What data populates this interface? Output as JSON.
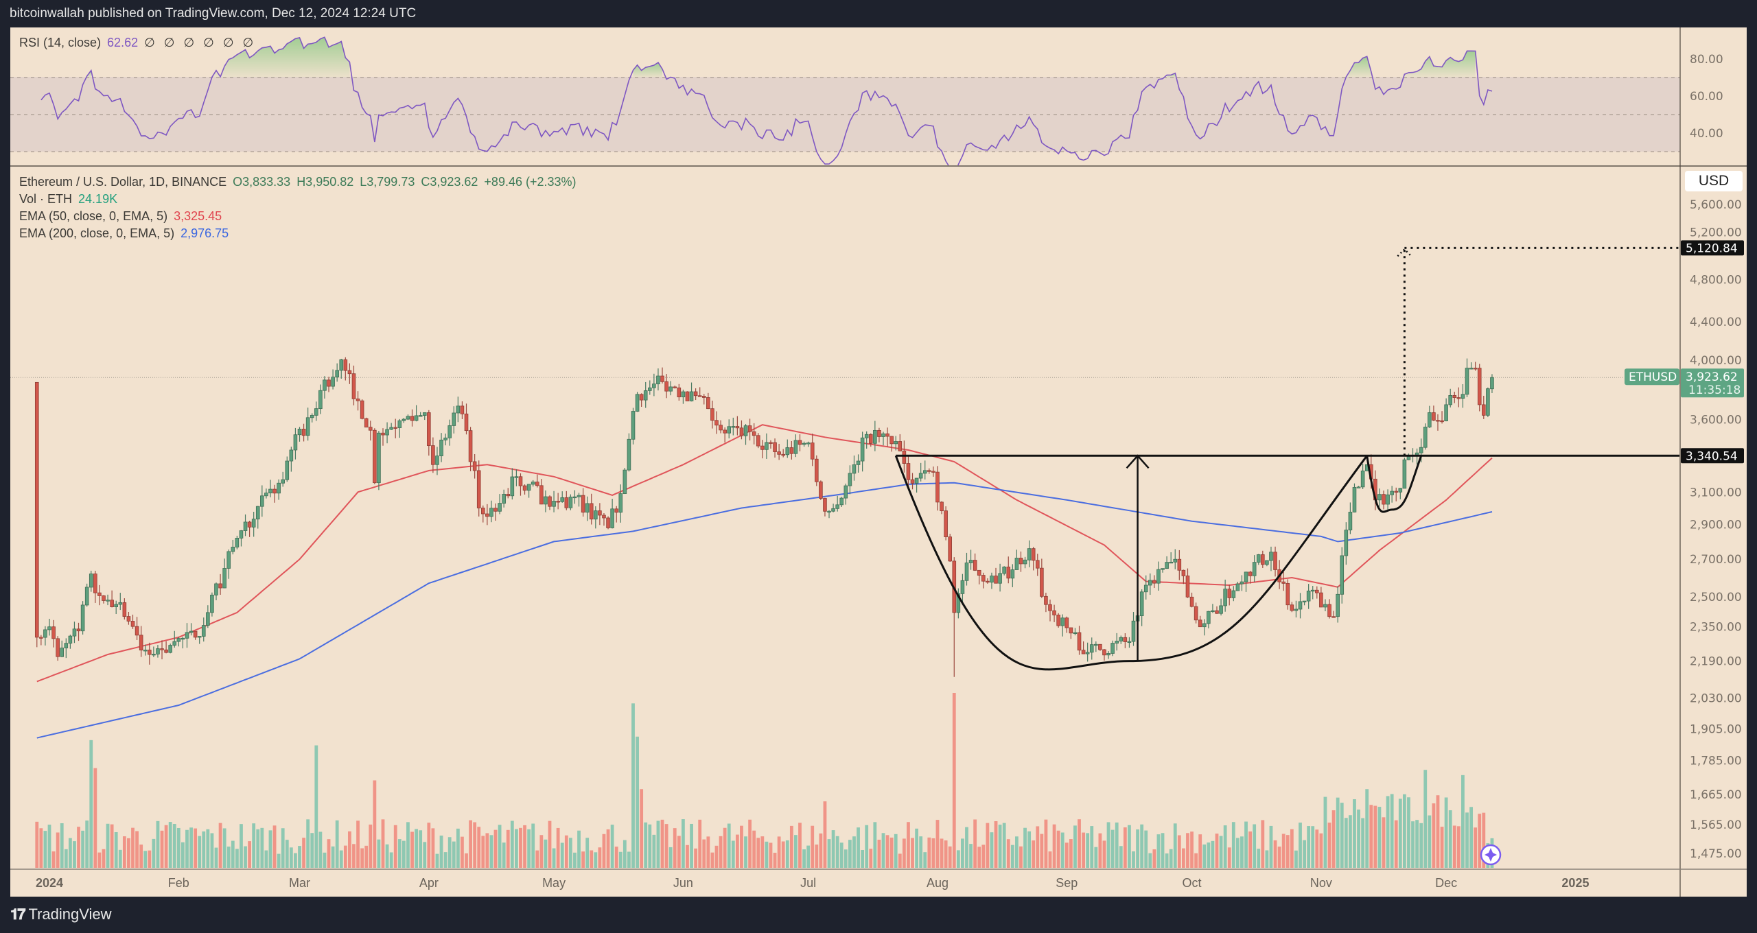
{
  "header": {
    "title": "bitcoinwallah published on TradingView.com, Dec 12, 2024 12:24 UTC"
  },
  "rsi_legend": {
    "label": "RSI (14, close)",
    "value": "62.62",
    "placeholders": "∅ ∅ ∅ ∅ ∅ ∅"
  },
  "legend": {
    "symbol": "Ethereum / U.S. Dollar, 1D, BINANCE",
    "open": "O3,833.33",
    "high": "H3,950.82",
    "low": "L3,799.73",
    "close": "C3,923.62",
    "change": "+89.46 (+2.33%)",
    "vol_label": "Vol · ETH",
    "vol_value": "24.19K",
    "ema50_label": "EMA (50, close, 0, EMA, 5)",
    "ema50_value": "3,325.45",
    "ema200_label": "EMA (200, close, 0, EMA, 5)",
    "ema200_value": "2,976.75"
  },
  "currency": "USD",
  "footer": {
    "brand": "TradingView",
    "logo_mark": "TV"
  },
  "colors": {
    "up": "#5e9f7d",
    "down": "#d2574b",
    "vol_up": "#8ec8b2",
    "vol_down": "#f09487",
    "ema50": "#e0555a",
    "ema200": "#4a6de0",
    "rsi": "#7e57c2",
    "background": "#f2e2cf"
  },
  "chart_data": [
    {
      "type": "line",
      "title": "RSI (14, close)",
      "yaxis": {
        "ticks": [
          "80.00",
          "60.00",
          "40.00"
        ],
        "tick_values": [
          80,
          60,
          40
        ],
        "bands": [
          70,
          50,
          30
        ]
      },
      "current": 62.62
    },
    {
      "type": "candlestick",
      "title": "Ethereum / U.S. Dollar, 1D, BINANCE",
      "yscale": "log",
      "ylim": [
        1430,
        5750
      ],
      "xaxis": {
        "ticks": [
          {
            "label": "2024",
            "date": "2024-01-01",
            "bold": true
          },
          {
            "label": "Feb",
            "date": "2024-02-01"
          },
          {
            "label": "Mar",
            "date": "2024-03-01"
          },
          {
            "label": "Apr",
            "date": "2024-04-01"
          },
          {
            "label": "May",
            "date": "2024-05-01"
          },
          {
            "label": "Jun",
            "date": "2024-06-01"
          },
          {
            "label": "Jul",
            "date": "2024-07-01"
          },
          {
            "label": "Aug",
            "date": "2024-08-01"
          },
          {
            "label": "Sep",
            "date": "2024-09-01"
          },
          {
            "label": "Oct",
            "date": "2024-10-01"
          },
          {
            "label": "Nov",
            "date": "2024-11-01"
          },
          {
            "label": "Dec",
            "date": "2024-12-01"
          },
          {
            "label": "2025",
            "date": "2025-01-01",
            "bold": true
          }
        ]
      },
      "yaxis": {
        "ticks": [
          {
            "label": "5,600.00",
            "value": 5600
          },
          {
            "label": "5,200.00",
            "value": 5200
          },
          {
            "label": "4,800.00",
            "value": 4800
          },
          {
            "label": "4,400.00",
            "value": 4400
          },
          {
            "label": "4,000.00",
            "value": 4000
          },
          {
            "label": "3,600.00",
            "value": 3600
          },
          {
            "label": "3,100.00",
            "value": 3100
          },
          {
            "label": "2,900.00",
            "value": 2900
          },
          {
            "label": "2,700.00",
            "value": 2700
          },
          {
            "label": "2,500.00",
            "value": 2500
          },
          {
            "label": "2,350.00",
            "value": 2350
          },
          {
            "label": "2,190.00",
            "value": 2190
          },
          {
            "label": "2,030.00",
            "value": 2030
          },
          {
            "label": "1,905.00",
            "value": 1905
          },
          {
            "label": "1,785.00",
            "value": 1785
          },
          {
            "label": "1,665.00",
            "value": 1665
          },
          {
            "label": "1,565.00",
            "value": 1565
          },
          {
            "label": "1,475.00",
            "value": 1475
          }
        ]
      },
      "close_keypoints": [
        [
          "2023-12-29",
          2300
        ],
        [
          "2024-01-01",
          2350
        ],
        [
          "2024-01-03",
          2210
        ],
        [
          "2024-01-08",
          2330
        ],
        [
          "2024-01-11",
          2620
        ],
        [
          "2024-01-12",
          2520
        ],
        [
          "2024-01-14",
          2480
        ],
        [
          "2024-01-18",
          2470
        ],
        [
          "2024-01-22",
          2310
        ],
        [
          "2024-01-23",
          2240
        ],
        [
          "2024-01-25",
          2220
        ],
        [
          "2024-01-31",
          2280
        ],
        [
          "2024-02-05",
          2300
        ],
        [
          "2024-02-08",
          2420
        ],
        [
          "2024-02-12",
          2650
        ],
        [
          "2024-02-15",
          2820
        ],
        [
          "2024-02-20",
          3010
        ],
        [
          "2024-02-26",
          3180
        ],
        [
          "2024-02-28",
          3380
        ],
        [
          "2024-03-04",
          3630
        ],
        [
          "2024-03-06",
          3820
        ],
        [
          "2024-03-11",
          4070
        ],
        [
          "2024-03-12",
          3980
        ],
        [
          "2024-03-15",
          3740
        ],
        [
          "2024-03-18",
          3520
        ],
        [
          "2024-03-19",
          3160
        ],
        [
          "2024-03-20",
          3500
        ],
        [
          "2024-03-25",
          3590
        ],
        [
          "2024-03-31",
          3650
        ],
        [
          "2024-04-02",
          3280
        ],
        [
          "2024-04-08",
          3700
        ],
        [
          "2024-04-12",
          3240
        ],
        [
          "2024-04-13",
          3000
        ],
        [
          "2024-04-17",
          2980
        ],
        [
          "2024-04-22",
          3200
        ],
        [
          "2024-04-25",
          3150
        ],
        [
          "2024-04-30",
          3010
        ],
        [
          "2024-05-06",
          3070
        ],
        [
          "2024-05-14",
          2880
        ],
        [
          "2024-05-17",
          3090
        ],
        [
          "2024-05-20",
          3660
        ],
        [
          "2024-05-21",
          3790
        ],
        [
          "2024-05-27",
          3890
        ],
        [
          "2024-06-01",
          3810
        ],
        [
          "2024-06-07",
          3680
        ],
        [
          "2024-06-11",
          3500
        ],
        [
          "2024-06-17",
          3510
        ],
        [
          "2024-06-24",
          3350
        ],
        [
          "2024-07-01",
          3430
        ],
        [
          "2024-07-04",
          3060
        ],
        [
          "2024-07-05",
          2980
        ],
        [
          "2024-07-08",
          3020
        ],
        [
          "2024-07-15",
          3490
        ],
        [
          "2024-07-22",
          3440
        ],
        [
          "2024-07-25",
          3180
        ],
        [
          "2024-07-31",
          3230
        ],
        [
          "2024-08-04",
          2690
        ],
        [
          "2024-08-05",
          2420
        ],
        [
          "2024-08-08",
          2680
        ],
        [
          "2024-08-15",
          2570
        ],
        [
          "2024-08-23",
          2760
        ],
        [
          "2024-08-27",
          2460
        ],
        [
          "2024-09-06",
          2230
        ],
        [
          "2024-09-16",
          2280
        ],
        [
          "2024-09-20",
          2560
        ],
        [
          "2024-09-27",
          2700
        ],
        [
          "2024-10-01",
          2450
        ],
        [
          "2024-10-03",
          2350
        ],
        [
          "2024-10-14",
          2630
        ],
        [
          "2024-10-20",
          2740
        ],
        [
          "2024-10-25",
          2430
        ],
        [
          "2024-10-31",
          2520
        ],
        [
          "2024-11-04",
          2400
        ],
        [
          "2024-11-06",
          2720
        ],
        [
          "2024-11-09",
          3130
        ],
        [
          "2024-11-12",
          3280
        ],
        [
          "2024-11-14",
          3050
        ],
        [
          "2024-11-19",
          3100
        ],
        [
          "2024-11-22",
          3340
        ],
        [
          "2024-11-24",
          3360
        ],
        [
          "2024-11-27",
          3650
        ],
        [
          "2024-11-29",
          3590
        ],
        [
          "2024-12-01",
          3710
        ],
        [
          "2024-12-05",
          3790
        ],
        [
          "2024-12-06",
          4000
        ],
        [
          "2024-12-08",
          4000
        ],
        [
          "2024-12-09",
          3710
        ],
        [
          "2024-12-10",
          3630
        ],
        [
          "2024-12-11",
          3834
        ],
        [
          "2024-12-12",
          3923.62
        ]
      ],
      "extremes": [
        [
          "2024-03-12",
          "high",
          4090
        ],
        [
          "2024-08-05",
          "low",
          2120
        ],
        [
          "2024-12-06",
          "high",
          4080
        ]
      ],
      "last": {
        "open": 3833.33,
        "high": 3950.82,
        "low": 3799.73,
        "close": 3923.62
      },
      "volume_spikes": [
        [
          "2024-01-11",
          0.73
        ],
        [
          "2024-01-12",
          0.57
        ],
        [
          "2024-03-05",
          0.7
        ],
        [
          "2024-03-19",
          0.5
        ],
        [
          "2024-05-20",
          0.94
        ],
        [
          "2024-05-21",
          0.75
        ],
        [
          "2024-05-22",
          0.45
        ],
        [
          "2024-07-05",
          0.38
        ],
        [
          "2024-08-05",
          1.0
        ],
        [
          "2024-11-12",
          0.45
        ],
        [
          "2024-11-26",
          0.56
        ],
        [
          "2024-12-05",
          0.53
        ]
      ],
      "ema50": [
        [
          "2023-12-29",
          2100
        ],
        [
          "2024-01-15",
          2220
        ],
        [
          "2024-02-01",
          2300
        ],
        [
          "2024-02-15",
          2420
        ],
        [
          "2024-03-01",
          2700
        ],
        [
          "2024-03-15",
          3100
        ],
        [
          "2024-04-01",
          3240
        ],
        [
          "2024-04-15",
          3280
        ],
        [
          "2024-05-01",
          3200
        ],
        [
          "2024-05-15",
          3080
        ],
        [
          "2024-06-01",
          3280
        ],
        [
          "2024-06-20",
          3560
        ],
        [
          "2024-07-05",
          3470
        ],
        [
          "2024-07-25",
          3380
        ],
        [
          "2024-08-05",
          3300
        ],
        [
          "2024-08-20",
          3050
        ],
        [
          "2024-09-10",
          2780
        ],
        [
          "2024-09-20",
          2580
        ],
        [
          "2024-10-10",
          2560
        ],
        [
          "2024-10-25",
          2600
        ],
        [
          "2024-11-05",
          2550
        ],
        [
          "2024-11-15",
          2750
        ],
        [
          "2024-12-01",
          3050
        ],
        [
          "2024-12-12",
          3325.45
        ]
      ],
      "ema200": [
        [
          "2023-12-29",
          1870
        ],
        [
          "2024-02-01",
          2000
        ],
        [
          "2024-03-01",
          2200
        ],
        [
          "2024-04-01",
          2570
        ],
        [
          "2024-05-01",
          2800
        ],
        [
          "2024-05-20",
          2860
        ],
        [
          "2024-06-15",
          3000
        ],
        [
          "2024-07-10",
          3090
        ],
        [
          "2024-07-25",
          3150
        ],
        [
          "2024-08-05",
          3160
        ],
        [
          "2024-09-01",
          3050
        ],
        [
          "2024-10-01",
          2920
        ],
        [
          "2024-11-01",
          2830
        ],
        [
          "2024-11-05",
          2800
        ],
        [
          "2024-11-20",
          2850
        ],
        [
          "2024-12-12",
          2976.75
        ]
      ],
      "price_labels": {
        "target": "5,120.84",
        "target_value": 5120.84,
        "neckline": "3,340.54",
        "neckline_value": 3340.54,
        "symbol": "ETHUSD",
        "last": "3,923.62",
        "countdown": "11:35:18"
      },
      "annotations": {
        "cup": {
          "start": "2024-07-22",
          "bottom": "2024-09-16",
          "bottom_price": 2190,
          "end": "2024-11-12"
        },
        "handle": {
          "start": "2024-11-12",
          "bottom": "2024-11-18",
          "bottom_price": 2990,
          "end": "2024-11-25"
        },
        "depth_arrow": {
          "date": "2024-09-18",
          "from": 2190,
          "to": 3340.54
        },
        "target_projection": {
          "date": "2024-11-21",
          "from": 3340.54,
          "to": 5120.84
        }
      }
    }
  ]
}
